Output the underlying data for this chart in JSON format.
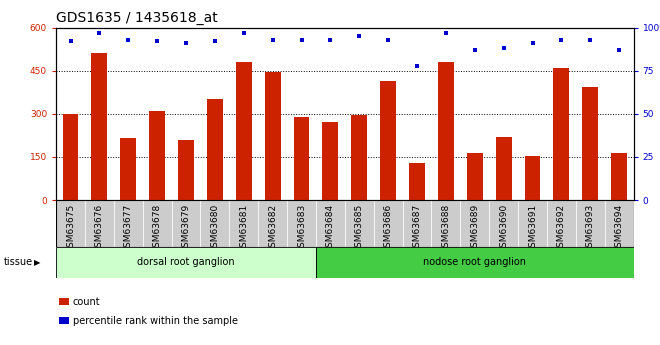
{
  "title": "GDS1635 / 1435618_at",
  "categories": [
    "GSM63675",
    "GSM63676",
    "GSM63677",
    "GSM63678",
    "GSM63679",
    "GSM63680",
    "GSM63681",
    "GSM63682",
    "GSM63683",
    "GSM63684",
    "GSM63685",
    "GSM63686",
    "GSM63687",
    "GSM63688",
    "GSM63689",
    "GSM63690",
    "GSM63691",
    "GSM63692",
    "GSM63693",
    "GSM63694"
  ],
  "counts": [
    300,
    510,
    215,
    310,
    210,
    350,
    480,
    445,
    290,
    270,
    295,
    415,
    130,
    480,
    165,
    220,
    155,
    460,
    395,
    165
  ],
  "percentiles": [
    92,
    97,
    93,
    92,
    91,
    92,
    97,
    93,
    93,
    93,
    95,
    93,
    78,
    97,
    87,
    88,
    91,
    93,
    93,
    87
  ],
  "bar_color": "#cc2200",
  "dot_color": "#0000cc",
  "left_ylim": [
    0,
    600
  ],
  "right_ylim": [
    0,
    100
  ],
  "left_yticks": [
    0,
    150,
    300,
    450,
    600
  ],
  "right_yticks": [
    0,
    25,
    50,
    75,
    100
  ],
  "left_ytick_labels": [
    "0",
    "150",
    "300",
    "450",
    "600"
  ],
  "right_ytick_labels": [
    "0",
    "25",
    "50",
    "75",
    "100%"
  ],
  "grid_yticks": [
    150,
    300,
    450
  ],
  "grid_color": "black",
  "tissue_groups": [
    {
      "label": "dorsal root ganglion",
      "start": 0,
      "end": 8,
      "color": "#ccffcc"
    },
    {
      "label": "nodose root ganglion",
      "start": 9,
      "end": 19,
      "color": "#44cc44"
    }
  ],
  "tissue_label": "tissue",
  "legend_count_label": "count",
  "legend_pct_label": "percentile rank within the sample",
  "bg_color": "#ffffff",
  "title_fontsize": 10,
  "tick_fontsize": 6.5,
  "bar_width": 0.55,
  "xtick_bg": "#cccccc"
}
